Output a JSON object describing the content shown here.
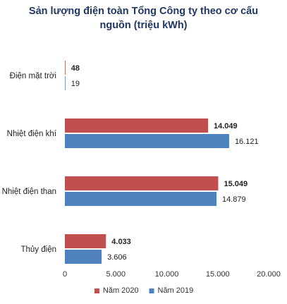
{
  "chart_data": {
    "type": "bar",
    "orientation": "horizontal",
    "title_lines": [
      "Sản lượng điện toàn Tổng Công ty theo cơ cấu",
      "nguồn (triệu kWh)"
    ],
    "categories": [
      "Điện mặt trời",
      "Nhiệt điện khí",
      "Nhiệt điện than",
      "Thủy điện"
    ],
    "series": [
      {
        "name": "Năm 2020",
        "color": "#c0504d",
        "values": [
          48,
          14049,
          15049,
          4033
        ],
        "labels": [
          "48",
          "14.049",
          "15.049",
          "4.033"
        ]
      },
      {
        "name": "Năm 2019",
        "color": "#4f81bd",
        "values": [
          19,
          16121,
          14879,
          3606
        ],
        "labels": [
          "19",
          "16.121",
          "14.879",
          "3.606"
        ]
      }
    ],
    "xlim": [
      0,
      20000
    ],
    "xticks": [
      0,
      5000,
      10000,
      15000,
      20000
    ],
    "xtick_labels": [
      "0",
      "5.000",
      "10.000",
      "15.000",
      "20.000"
    ],
    "grid": false,
    "legend": "bottom"
  }
}
